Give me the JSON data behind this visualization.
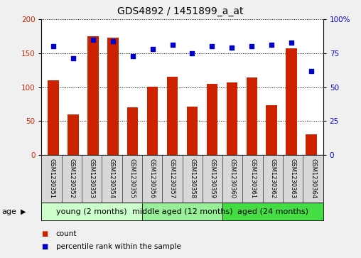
{
  "title": "GDS4892 / 1451899_a_at",
  "samples": [
    "GSM1230351",
    "GSM1230352",
    "GSM1230353",
    "GSM1230354",
    "GSM1230355",
    "GSM1230356",
    "GSM1230357",
    "GSM1230358",
    "GSM1230359",
    "GSM1230360",
    "GSM1230361",
    "GSM1230362",
    "GSM1230363",
    "GSM1230364"
  ],
  "counts": [
    110,
    60,
    175,
    173,
    70,
    101,
    115,
    71,
    105,
    107,
    114,
    73,
    157,
    30
  ],
  "percentiles": [
    80,
    71,
    85,
    84,
    73,
    78,
    81,
    75,
    80,
    79,
    80,
    81,
    83,
    62
  ],
  "bar_color": "#cc2200",
  "dot_color": "#0000cc",
  "ylim_left": [
    0,
    200
  ],
  "ylim_right": [
    0,
    100
  ],
  "yticks_left": [
    0,
    50,
    100,
    150,
    200
  ],
  "yticks_right": [
    0,
    25,
    50,
    75,
    100
  ],
  "yticklabels_right": [
    "0",
    "25",
    "50",
    "75",
    "100%"
  ],
  "groups": [
    {
      "label": "young (2 months)",
      "start": 0,
      "end": 5,
      "color": "#ccffcc"
    },
    {
      "label": "middle aged (12 months)",
      "start": 5,
      "end": 9,
      "color": "#99ee99"
    },
    {
      "label": "aged (24 months)",
      "start": 9,
      "end": 14,
      "color": "#44dd44"
    }
  ],
  "age_label": "age",
  "legend_count_label": "count",
  "legend_percentile_label": "percentile rank within the sample",
  "plot_bg_color": "#ffffff",
  "grid_color": "#000000",
  "sample_box_color": "#d8d8d8",
  "title_fontsize": 10,
  "tick_fontsize": 7.5,
  "sample_fontsize": 6,
  "group_fontsize": 8
}
